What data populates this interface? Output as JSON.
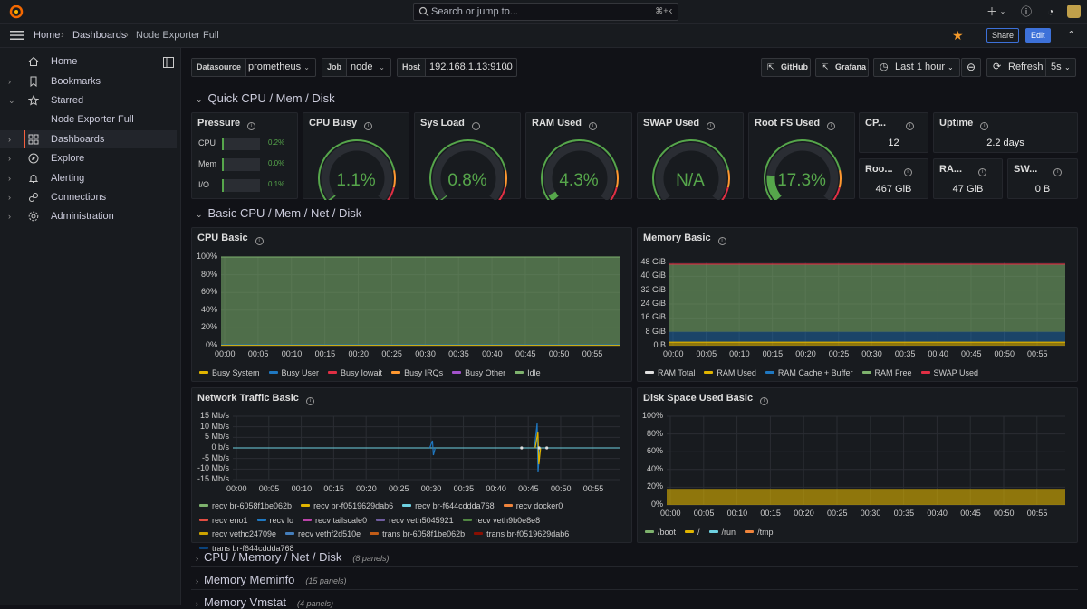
{
  "topbar": {
    "search_placeholder": "Search or jump to...",
    "search_shortcut": "⌘+k"
  },
  "breadcrumb": {
    "home": "Home",
    "dashboards": "Dashboards",
    "current": "Node Exporter Full"
  },
  "actions": {
    "share": "Share",
    "edit": "Edit"
  },
  "sidebar": {
    "items": [
      {
        "label": "Home",
        "icon": "home-icon"
      },
      {
        "label": "Bookmarks",
        "icon": "bookmark-icon"
      },
      {
        "label": "Starred",
        "icon": "star-icon"
      },
      {
        "label": "Node Exporter Full",
        "icon": ""
      },
      {
        "label": "Dashboards",
        "icon": "dashboards-icon"
      },
      {
        "label": "Explore",
        "icon": "compass-icon"
      },
      {
        "label": "Alerting",
        "icon": "bell-icon"
      },
      {
        "label": "Connections",
        "icon": "link-icon"
      },
      {
        "label": "Administration",
        "icon": "gear-icon"
      }
    ]
  },
  "variables": {
    "datasource": {
      "label": "Datasource",
      "value": "prometheus"
    },
    "job": {
      "label": "Job",
      "value": "node"
    },
    "host": {
      "label": "Host",
      "value": "192.168.1.13:9100"
    }
  },
  "toolbar": {
    "github": "GitHub",
    "grafana": "Grafana",
    "time_range": "Last 1 hour",
    "refresh": "Refresh",
    "interval": "5s"
  },
  "rows": {
    "quick": "Quick CPU / Mem / Disk",
    "basic": "Basic CPU / Mem / Net / Disk",
    "cpu_mem": {
      "title": "CPU / Memory / Net / Disk",
      "count": "(8 panels)"
    },
    "meminfo": {
      "title": "Memory Meminfo",
      "count": "(15 panels)"
    },
    "vmstat": {
      "title": "Memory Vmstat",
      "count": "(4 panels)"
    }
  },
  "pressure": {
    "title": "Pressure",
    "bars": [
      {
        "label": "CPU",
        "value": "0.2%",
        "fraction": 0.002
      },
      {
        "label": "Mem",
        "value": "0.0%",
        "fraction": 0.0
      },
      {
        "label": "I/O",
        "value": "0.1%",
        "fraction": 0.001
      }
    ]
  },
  "gauges": [
    {
      "title": "CPU Busy",
      "value": "1.1%",
      "fraction": 0.011
    },
    {
      "title": "Sys Load",
      "value": "0.8%",
      "fraction": 0.008
    },
    {
      "title": "RAM Used",
      "value": "4.3%",
      "fraction": 0.043
    },
    {
      "title": "SWAP Used",
      "value": "N/A",
      "fraction": 0
    },
    {
      "title": "Root FS Used",
      "value": "17.3%",
      "fraction": 0.173
    }
  ],
  "stats": {
    "cpu_cores": {
      "title": "CP...",
      "value": "12"
    },
    "uptime": {
      "title": "Uptime",
      "value": "2.2 days"
    },
    "rootfs_total": {
      "title": "Roo...",
      "value": "467 GiB"
    },
    "ram_total": {
      "title": "RA...",
      "value": "47 GiB"
    },
    "swap_total": {
      "title": "SW...",
      "value": "0 B"
    }
  },
  "time_ticks": [
    "00:00",
    "00:05",
    "00:10",
    "00:15",
    "00:20",
    "00:25",
    "00:30",
    "00:35",
    "00:40",
    "00:45",
    "00:50",
    "00:55"
  ],
  "chart_data": [
    {
      "type": "area",
      "title": "CPU Basic",
      "yticks": [
        "100%",
        "80%",
        "60%",
        "40%",
        "20%",
        "0%"
      ],
      "ylim": [
        0,
        100
      ],
      "series": [
        {
          "name": "Busy System",
          "color": "#e0b400",
          "values": [
            0.5
          ]
        },
        {
          "name": "Busy User",
          "color": "#1f78c1",
          "values": [
            0.6
          ]
        },
        {
          "name": "Busy Iowait",
          "color": "#e02f44",
          "values": [
            0
          ]
        },
        {
          "name": "Busy IRQs",
          "color": "#ff9830",
          "values": [
            0
          ]
        },
        {
          "name": "Busy Other",
          "color": "#a352cc",
          "values": [
            0
          ]
        },
        {
          "name": "Idle",
          "color": "#7eb26d",
          "values": [
            98.9
          ]
        }
      ]
    },
    {
      "type": "area",
      "title": "Memory Basic",
      "yticks": [
        "48 GiB",
        "40 GiB",
        "32 GiB",
        "24 GiB",
        "16 GiB",
        "8 GiB",
        "0 B"
      ],
      "ylim": [
        0,
        48
      ],
      "series": [
        {
          "name": "RAM Total",
          "color": "#e0e0e0",
          "values": [
            47
          ]
        },
        {
          "name": "RAM Used",
          "color": "#e0b400",
          "values": [
            2
          ]
        },
        {
          "name": "RAM Cache + Buffer",
          "color": "#1f78c1",
          "values": [
            6
          ]
        },
        {
          "name": "RAM Free",
          "color": "#7eb26d",
          "values": [
            39
          ]
        },
        {
          "name": "SWAP Used",
          "color": "#e02f44",
          "values": [
            0
          ]
        }
      ]
    },
    {
      "type": "line",
      "title": "Network Traffic Basic",
      "yticks": [
        "15 Mb/s",
        "10 Mb/s",
        "5 Mb/s",
        "0 b/s",
        "-5 Mb/s",
        "-10 Mb/s",
        "-15 Mb/s"
      ],
      "ylim": [
        -15,
        15
      ],
      "series": [
        {
          "name": "recv br-6058f1be062b",
          "color": "#7eb26d"
        },
        {
          "name": "recv br-f0519629dab6",
          "color": "#e0b400"
        },
        {
          "name": "recv br-f644cddda768",
          "color": "#6ed0e0"
        },
        {
          "name": "recv docker0",
          "color": "#ef843c"
        },
        {
          "name": "recv eno1",
          "color": "#e24d42"
        },
        {
          "name": "recv lo",
          "color": "#1f78c1"
        },
        {
          "name": "recv tailscale0",
          "color": "#ba43a9"
        },
        {
          "name": "recv veth5045921",
          "color": "#705da0"
        },
        {
          "name": "recv veth9b0e8e8",
          "color": "#508642"
        },
        {
          "name": "recv vethc24709e",
          "color": "#cca300"
        },
        {
          "name": "recv vethf2d510e",
          "color": "#447ebc"
        },
        {
          "name": "trans br-6058f1be062b",
          "color": "#c15c17"
        },
        {
          "name": "trans br-f0519629dab6",
          "color": "#890f02"
        },
        {
          "name": "trans br-f644cddda768",
          "color": "#0a437c"
        }
      ]
    },
    {
      "type": "area",
      "title": "Disk Space Used Basic",
      "yticks": [
        "100%",
        "80%",
        "60%",
        "40%",
        "20%",
        "0%"
      ],
      "ylim": [
        0,
        100
      ],
      "series": [
        {
          "name": "/boot",
          "color": "#7eb26d",
          "values": [
            0
          ]
        },
        {
          "name": "/",
          "color": "#e0b400",
          "values": [
            17.3
          ]
        },
        {
          "name": "/run",
          "color": "#6ed0e0",
          "values": [
            0
          ]
        },
        {
          "name": "/tmp",
          "color": "#ef843c",
          "values": [
            0
          ]
        }
      ]
    }
  ]
}
